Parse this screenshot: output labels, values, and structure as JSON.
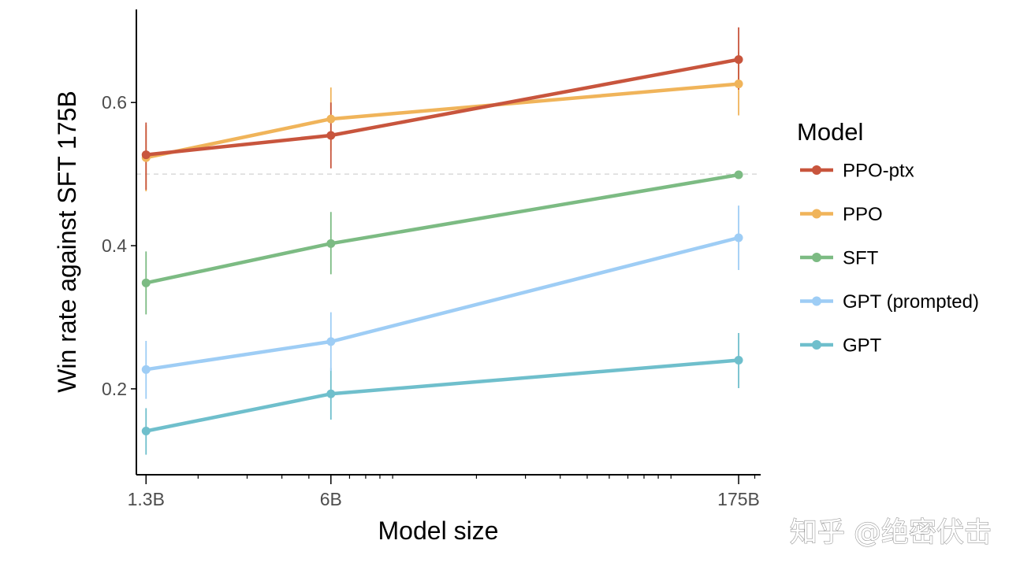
{
  "chart_data": {
    "type": "line",
    "xlabel": "Model size",
    "ylabel": "Win rate against SFT 175B",
    "x_scale": "log",
    "categories": [
      "1.3B",
      "6B",
      "175B"
    ],
    "x": [
      1.3,
      6,
      175
    ],
    "xlim": [
      1.2,
      210
    ],
    "ylim": [
      0.08,
      0.73
    ],
    "yticks": [
      0.2,
      0.4,
      0.6
    ],
    "ytick_labels": [
      "0.2",
      "0.4",
      "0.6"
    ],
    "reference_line": 0.5,
    "grid": false,
    "legend_title": "Model",
    "legend_position": "right",
    "series": [
      {
        "name": "PPO-ptx",
        "color": "#c8553d",
        "values": [
          0.527,
          0.554,
          0.66
        ],
        "err_low": [
          0.478,
          0.508,
          0.618
        ],
        "err_high": [
          0.572,
          0.6,
          0.705
        ]
      },
      {
        "name": "PPO",
        "color": "#f0b45a",
        "values": [
          0.523,
          0.577,
          0.626
        ],
        "err_low": [
          0.476,
          0.533,
          0.582
        ],
        "err_high": [
          0.568,
          0.621,
          0.671
        ]
      },
      {
        "name": "SFT",
        "color": "#7cbb83",
        "values": [
          0.348,
          0.403,
          0.499
        ],
        "err_low": [
          0.304,
          0.36,
          0.499
        ],
        "err_high": [
          0.392,
          0.447,
          0.499
        ]
      },
      {
        "name": "GPT (prompted)",
        "color": "#9ecdf5",
        "values": [
          0.227,
          0.266,
          0.411
        ],
        "err_low": [
          0.186,
          0.225,
          0.366
        ],
        "err_high": [
          0.267,
          0.307,
          0.456
        ]
      },
      {
        "name": "GPT",
        "color": "#6fbfcc",
        "values": [
          0.141,
          0.193,
          0.24
        ],
        "err_low": [
          0.108,
          0.157,
          0.201
        ],
        "err_high": [
          0.173,
          0.229,
          0.278
        ]
      }
    ]
  },
  "watermark": "知乎 @绝密伏击"
}
